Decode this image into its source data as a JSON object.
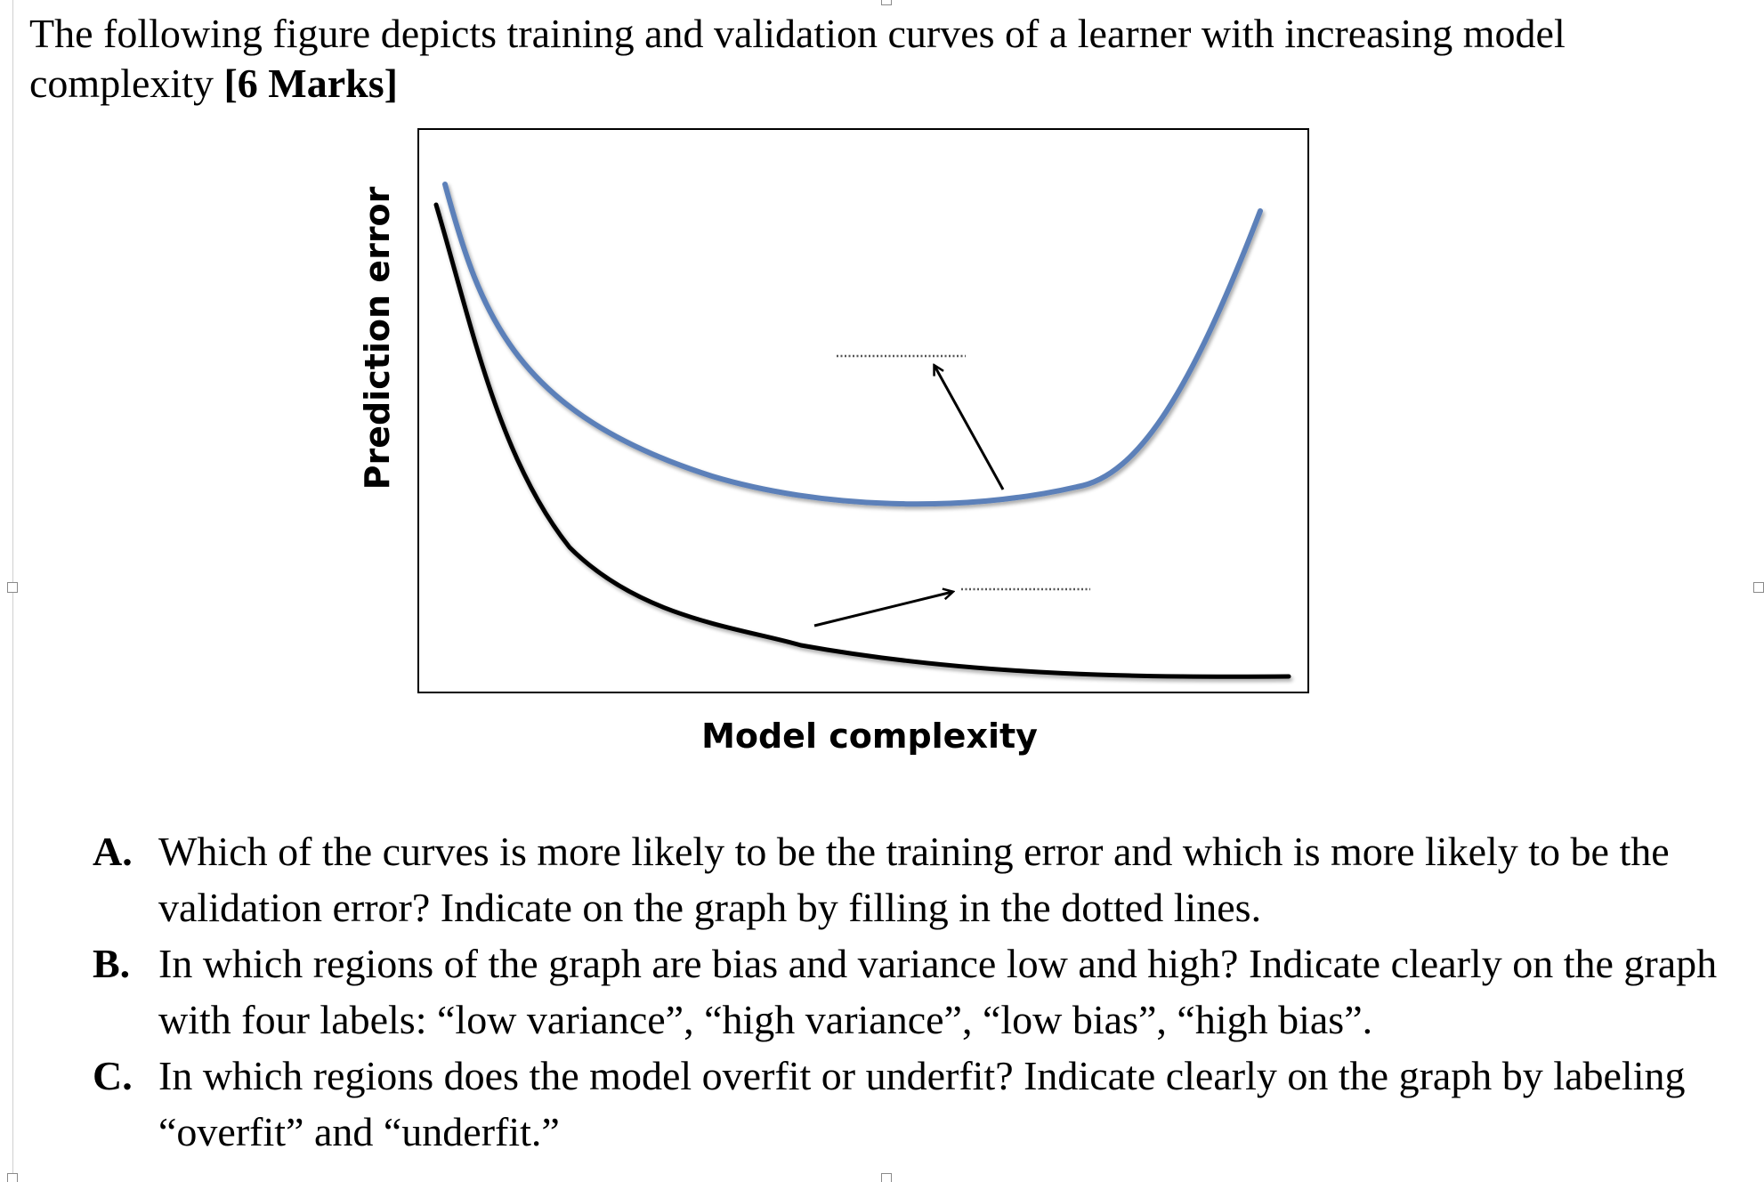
{
  "question": {
    "intro_text": "The following figure depicts training and validation curves of a learner with increasing model complexity",
    "marks": "[6 Marks]"
  },
  "figure": {
    "ylabel": "Prediction error",
    "xlabel": "Model complexity",
    "curve_colors": {
      "upper_curve": "#5b80b9",
      "lower_curve": "#000000"
    }
  },
  "parts": [
    {
      "letter": "A.",
      "text": "Which of the curves is more likely to be the training error and which is more likely to be the validation error? Indicate on the graph by filling in the dotted lines."
    },
    {
      "letter": "B.",
      "text": "In which regions of the graph are bias and variance low and high? Indicate clearly on the graph with four labels: “low variance”, “high variance”, “low bias”, “high bias”."
    },
    {
      "letter": "C.",
      "text": "In which regions does the model overfit or underfit? Indicate clearly on the graph by labeling “overfit” and “underfit.”"
    }
  ]
}
